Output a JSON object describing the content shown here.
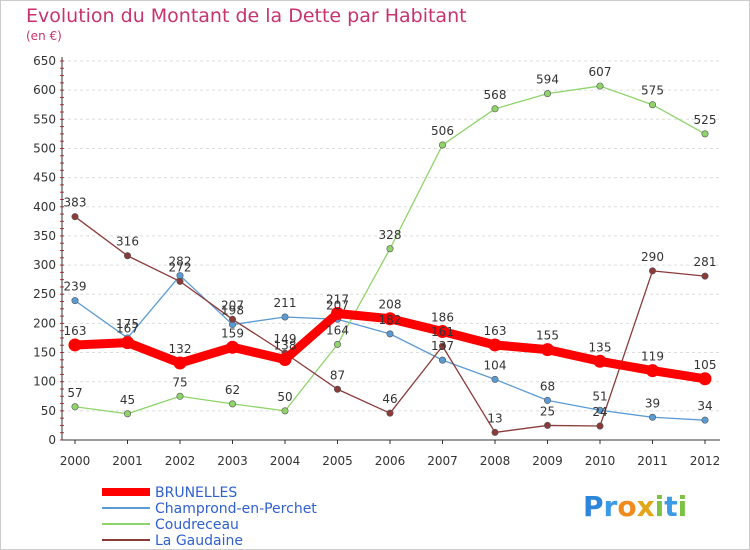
{
  "chart_data": {
    "type": "line",
    "title": "Evolution du Montant de la Dette par Habitant",
    "subtitle": "(en €)",
    "xlabel": "",
    "ylabel": "",
    "ylim": [
      0,
      650
    ],
    "yticks": [
      0,
      50,
      100,
      150,
      200,
      250,
      300,
      350,
      400,
      450,
      500,
      550,
      600,
      650
    ],
    "categories": [
      "2000",
      "2001",
      "2002",
      "2003",
      "2004",
      "2005",
      "2006",
      "2007",
      "2008",
      "2009",
      "2010",
      "2011",
      "2012"
    ],
    "grid": "horizontal-dashed",
    "legend_position": "bottom-left",
    "series": [
      {
        "name": "BRUNELLES",
        "color": "#ff0000",
        "values": [
          163,
          167,
          132,
          159,
          138,
          217,
          208,
          186,
          163,
          155,
          135,
          119,
          105
        ]
      },
      {
        "name": "Champrond-en-Perchet",
        "color": "#5b9bd5",
        "values": [
          239,
          175,
          282,
          198,
          211,
          207,
          182,
          137,
          104,
          68,
          51,
          39,
          34
        ]
      },
      {
        "name": "Coudreceau",
        "color": "#8fd46a",
        "values": [
          57,
          45,
          75,
          62,
          50,
          164,
          328,
          506,
          568,
          594,
          607,
          575,
          525
        ]
      },
      {
        "name": "La Gaudaine",
        "color": "#8b3a3a",
        "values": [
          383,
          316,
          272,
          207,
          149,
          87,
          46,
          161,
          13,
          25,
          24,
          290,
          281
        ]
      }
    ]
  },
  "logo": {
    "parts": [
      "P",
      "r",
      "o",
      "x",
      "i",
      "t",
      "i"
    ]
  }
}
